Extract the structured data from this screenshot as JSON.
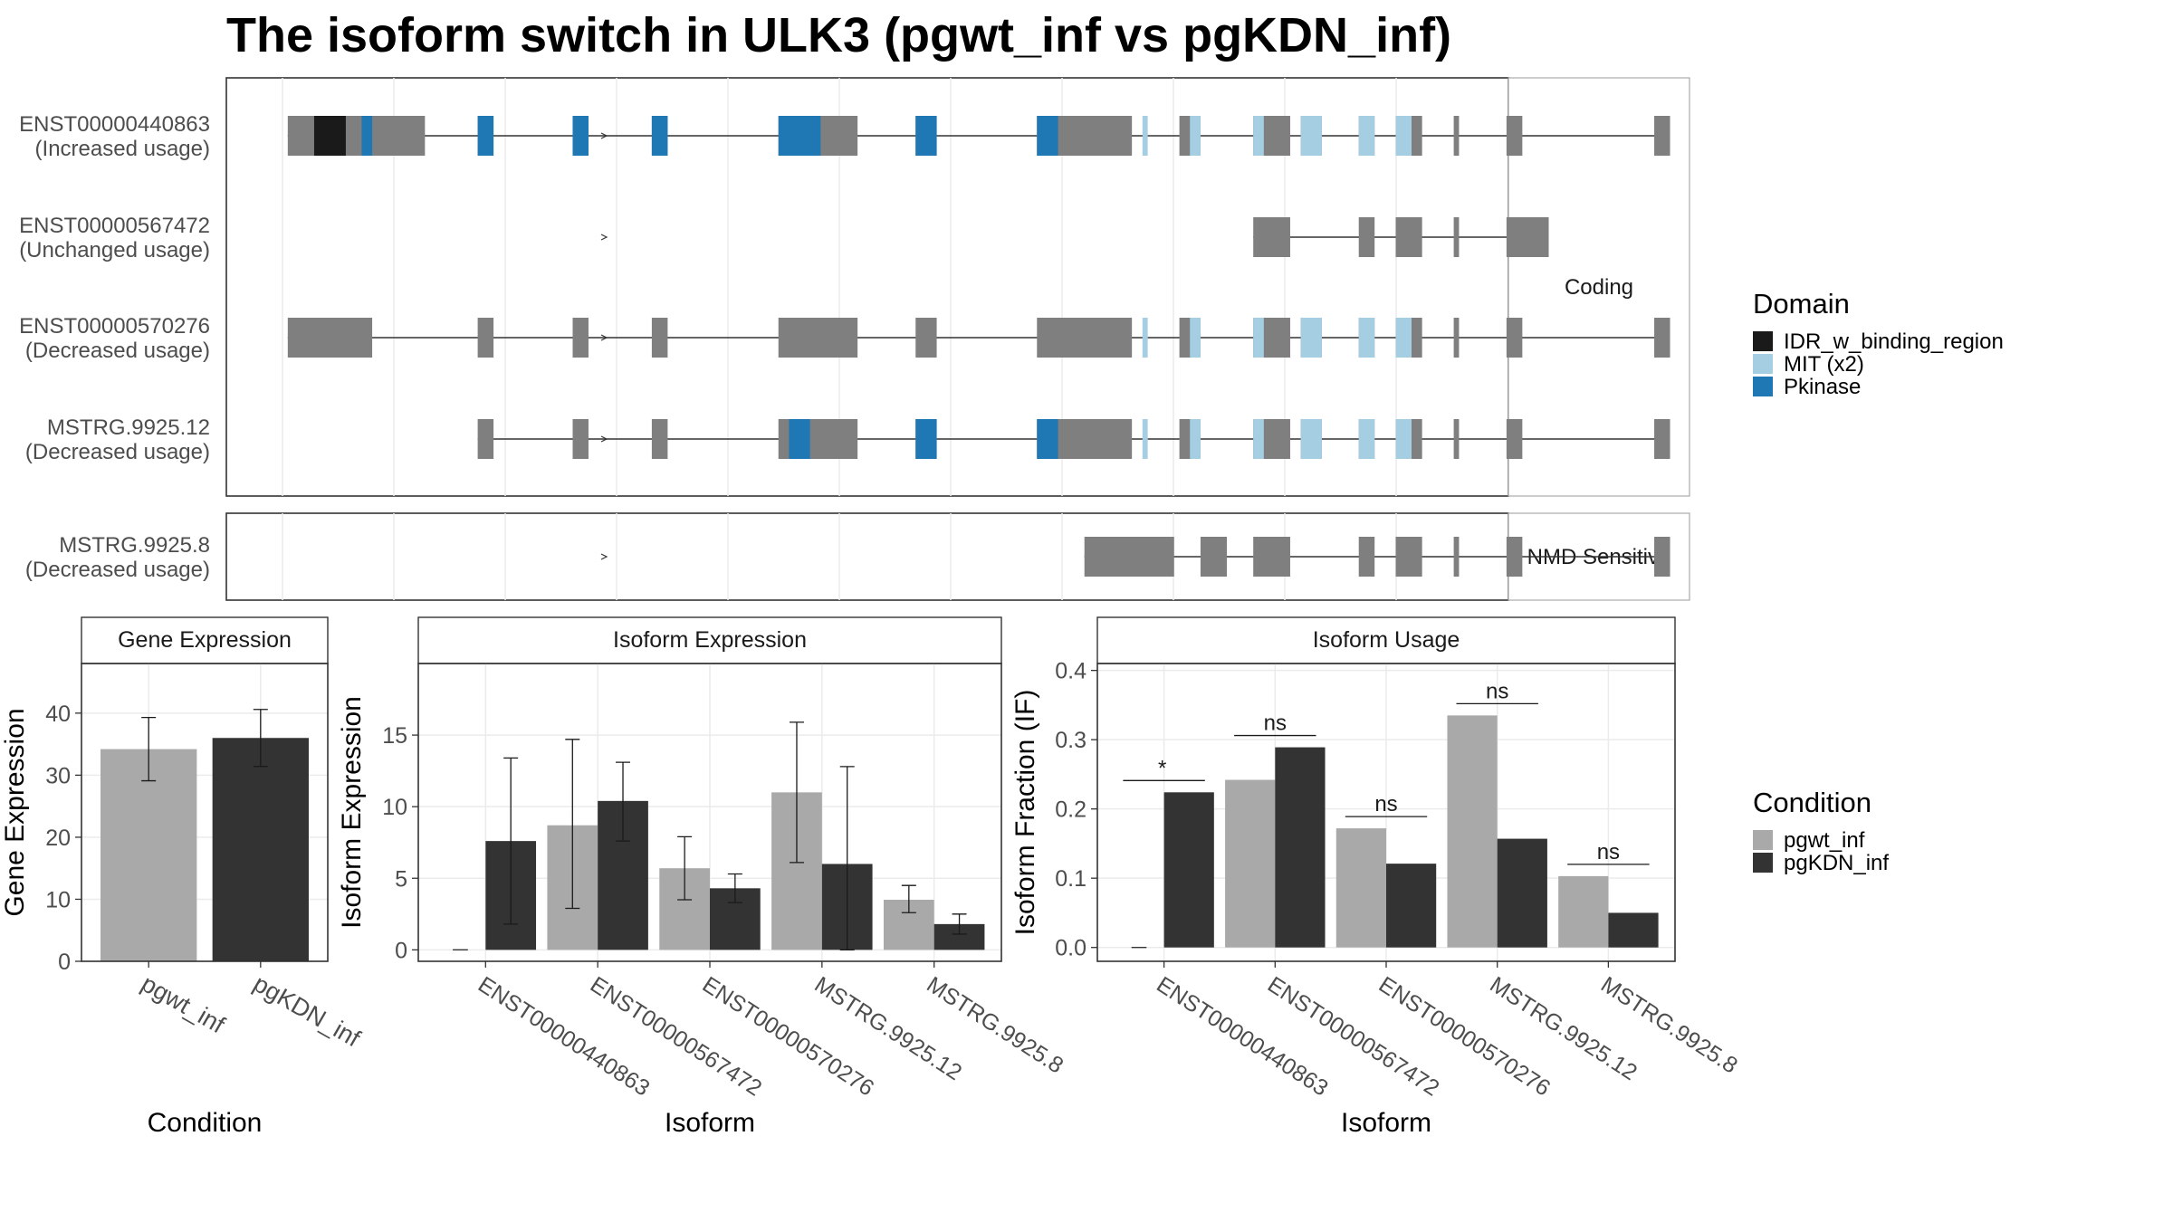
{
  "title": "The isoform switch in ULK3 (pgwt_inf vs pgKDN_inf)",
  "colors": {
    "exon": "#7f7f7f",
    "idr": "#1a1a1a",
    "mit": "#a6cee3",
    "pkinase": "#1f78b4",
    "pgwt_inf": "#a9a9a9",
    "pgKDN_inf": "#333333",
    "strip_bg": "#ffffff",
    "grid": "#ebebeb"
  },
  "panels": {
    "coding": "Coding",
    "nmd": "NMD Sensitive"
  },
  "isoforms": [
    {
      "id": "ENST00000440863",
      "usage": "(Increased usage)"
    },
    {
      "id": "ENST00000567472",
      "usage": "(Unchanged usage)"
    },
    {
      "id": "ENST00000570276",
      "usage": "(Decreased usage)"
    },
    {
      "id": "MSTRG.9925.12",
      "usage": "(Decreased usage)"
    },
    {
      "id": "MSTRG.9925.8",
      "usage": "(Decreased usage)"
    }
  ],
  "legend_domain": {
    "title": "Domain",
    "items": [
      {
        "label": "IDR_w_binding_region",
        "color": "#1a1a1a"
      },
      {
        "label": "MIT (x2)",
        "color": "#a6cee3"
      },
      {
        "label": "Pkinase",
        "color": "#1f78b4"
      }
    ]
  },
  "legend_condition": {
    "title": "Condition",
    "items": [
      {
        "label": "pgwt_inf",
        "color": "#a9a9a9"
      },
      {
        "label": "pgKDN_inf",
        "color": "#333333"
      }
    ]
  },
  "chart_data": [
    {
      "type": "gene-structure",
      "panel": "Coding",
      "transcripts": [
        {
          "id": "ENST00000440863",
          "usage": "(Increased usage)",
          "exons": [
            [
              1,
              27
            ],
            [
              37,
              40
            ],
            [
              55,
              58
            ],
            [
              70,
              73
            ],
            [
              94,
              109
            ],
            [
              120,
              124
            ],
            [
              143,
              161
            ],
            [
              170,
              174
            ],
            [
              184,
              191
            ],
            [
              193,
              197
            ],
            [
              204,
              207
            ],
            [
              211,
              216
            ],
            [
              222,
              223
            ],
            [
              232,
              235
            ],
            [
              260,
              263
            ]
          ],
          "domains": [
            [
              "idr",
              6,
              12
            ],
            [
              "pkinase",
              15,
              17
            ],
            [
              "pkinase",
              37,
              40
            ],
            [
              "pkinase",
              55,
              58
            ],
            [
              "pkinase",
              70,
              73
            ],
            [
              "pkinase",
              94,
              102
            ],
            [
              "pkinase",
              120,
              124
            ],
            [
              "pkinase",
              143,
              147
            ],
            [
              "mit",
              163,
              164
            ],
            [
              "mit",
              172,
              174
            ],
            [
              "mit",
              184,
              186
            ],
            [
              "mit",
              193,
              197
            ],
            [
              "mit",
              204,
              207
            ],
            [
              "mit",
              211,
              214
            ]
          ]
        },
        {
          "id": "ENST00000567472",
          "usage": "(Unchanged usage)",
          "exons": [
            [
              184,
              191
            ],
            [
              204,
              207
            ],
            [
              211,
              216
            ],
            [
              222,
              223
            ],
            [
              232,
              240
            ]
          ],
          "domains": []
        },
        {
          "id": "ENST00000570276",
          "usage": "(Decreased usage)",
          "exons": [
            [
              1,
              17
            ],
            [
              37,
              40
            ],
            [
              55,
              58
            ],
            [
              70,
              73
            ],
            [
              94,
              109
            ],
            [
              120,
              124
            ],
            [
              143,
              161
            ],
            [
              170,
              174
            ],
            [
              184,
              191
            ],
            [
              193,
              197
            ],
            [
              204,
              207
            ],
            [
              211,
              216
            ],
            [
              222,
              223
            ],
            [
              232,
              235
            ],
            [
              260,
              263
            ]
          ],
          "domains": [
            [
              "mit",
              163,
              164
            ],
            [
              "mit",
              172,
              174
            ],
            [
              "mit",
              184,
              186
            ],
            [
              "mit",
              193,
              197
            ],
            [
              "mit",
              204,
              207
            ],
            [
              "mit",
              211,
              214
            ]
          ]
        },
        {
          "id": "MSTRG.9925.12",
          "usage": "(Decreased usage)",
          "exons": [
            [
              37,
              40
            ],
            [
              55,
              58
            ],
            [
              70,
              73
            ],
            [
              94,
              109
            ],
            [
              120,
              124
            ],
            [
              143,
              161
            ],
            [
              170,
              174
            ],
            [
              184,
              191
            ],
            [
              193,
              197
            ],
            [
              204,
              207
            ],
            [
              211,
              216
            ],
            [
              222,
              223
            ],
            [
              232,
              235
            ],
            [
              260,
              263
            ]
          ],
          "domains": [
            [
              "pkinase",
              96,
              100
            ],
            [
              "pkinase",
              120,
              124
            ],
            [
              "pkinase",
              143,
              147
            ],
            [
              "mit",
              163,
              164
            ],
            [
              "mit",
              172,
              174
            ],
            [
              "mit",
              184,
              186
            ],
            [
              "mit",
              193,
              197
            ],
            [
              "mit",
              204,
              207
            ],
            [
              "mit",
              211,
              214
            ]
          ]
        }
      ]
    },
    {
      "type": "gene-structure",
      "panel": "NMD Sensitive",
      "transcripts": [
        {
          "id": "MSTRG.9925.8",
          "usage": "(Decreased usage)",
          "exons": [
            [
              152,
              169
            ],
            [
              174,
              179
            ],
            [
              184,
              191
            ],
            [
              204,
              207
            ],
            [
              211,
              216
            ],
            [
              222,
              223
            ],
            [
              232,
              235
            ],
            [
              260,
              263
            ]
          ],
          "domains": []
        }
      ]
    },
    {
      "type": "bar",
      "title": "Gene Expression",
      "xlabel": "Condition",
      "ylabel": "Gene Expression",
      "ylim": [
        0,
        48
      ],
      "yticks": [
        0,
        10,
        20,
        30,
        40
      ],
      "categories": [
        "pgwt_inf",
        "pgKDN_inf"
      ],
      "values": [
        34.2,
        36.0
      ],
      "err_low": [
        29.1,
        31.4
      ],
      "err_high": [
        39.3,
        40.6
      ]
    },
    {
      "type": "bar",
      "title": "Isoform Expression",
      "xlabel": "Isoform",
      "ylabel": "Isoform Expression",
      "ylim": [
        -0.8,
        20.0
      ],
      "yticks": [
        0,
        5,
        10,
        15
      ],
      "categories": [
        "ENST00000440863",
        "ENST00000567472",
        "ENST00000570276",
        "MSTRG.9925.12",
        "MSTRG.9925.8"
      ],
      "series": [
        {
          "name": "pgwt_inf",
          "values": [
            0.0,
            8.7,
            5.7,
            11.0,
            3.5
          ],
          "err_low": [
            0.0,
            2.9,
            3.5,
            6.1,
            2.6
          ],
          "err_high": [
            0.0,
            14.7,
            7.9,
            15.9,
            4.5
          ]
        },
        {
          "name": "pgKDN_inf",
          "values": [
            7.6,
            10.4,
            4.3,
            6.0,
            1.8
          ],
          "err_low": [
            1.8,
            7.6,
            3.3,
            0.0,
            1.1
          ],
          "err_high": [
            13.4,
            13.1,
            5.3,
            12.8,
            2.5
          ]
        }
      ]
    },
    {
      "type": "bar",
      "title": "Isoform Usage",
      "xlabel": "Isoform",
      "ylabel": "Isoform Fraction (IF)",
      "ylim": [
        -0.02,
        0.41
      ],
      "yticks": [
        0.0,
        0.1,
        0.2,
        0.3,
        0.4
      ],
      "categories": [
        "ENST00000440863",
        "ENST00000567472",
        "ENST00000570276",
        "MSTRG.9925.12",
        "MSTRG.9925.8"
      ],
      "series": [
        {
          "name": "pgwt_inf",
          "values": [
            0.0,
            0.242,
            0.172,
            0.335,
            0.103
          ]
        },
        {
          "name": "pgKDN_inf",
          "values": [
            0.224,
            0.289,
            0.121,
            0.157,
            0.05
          ]
        }
      ],
      "annotations": [
        "*",
        "ns",
        "ns",
        "ns",
        "ns"
      ]
    }
  ]
}
